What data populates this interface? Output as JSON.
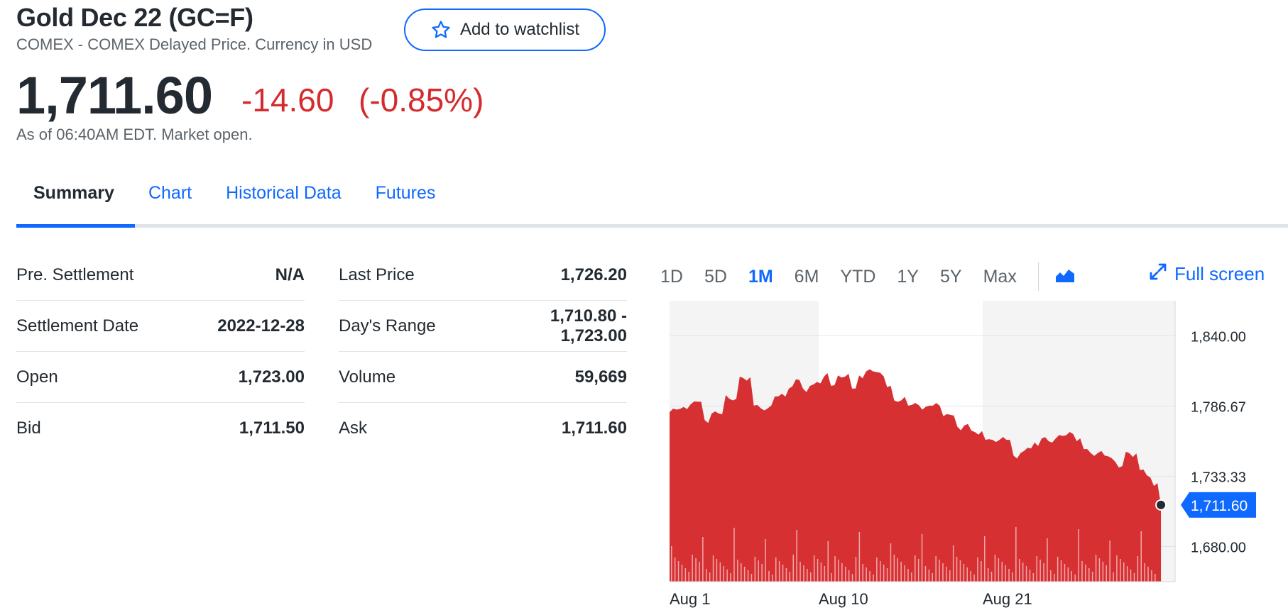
{
  "header": {
    "title": "Gold Dec 22 (GC=F)",
    "subtitle": "COMEX - COMEX Delayed Price. Currency in USD",
    "watchlist_label": "Add to watchlist"
  },
  "quote": {
    "price": "1,711.60",
    "change": "-14.60",
    "change_percent": "(-0.85%)",
    "as_of": "As of 06:40AM EDT. Market open.",
    "change_color": "#d52b2e"
  },
  "tabs": [
    {
      "label": "Summary",
      "active": true
    },
    {
      "label": "Chart"
    },
    {
      "label": "Historical Data"
    },
    {
      "label": "Futures"
    }
  ],
  "summary_left": [
    {
      "label": "Pre. Settlement",
      "value": "N/A"
    },
    {
      "label": "Settlement Date",
      "value": "2022-12-28"
    },
    {
      "label": "Open",
      "value": "1,723.00"
    },
    {
      "label": "Bid",
      "value": "1,711.50"
    }
  ],
  "summary_right": [
    {
      "label": "Last Price",
      "value": "1,726.20"
    },
    {
      "label": "Day's Range",
      "value_line1": "1,710.80 -",
      "value_line2": "1,723.00"
    },
    {
      "label": "Volume",
      "value": "59,669"
    },
    {
      "label": "Ask",
      "value": "1,711.60"
    }
  ],
  "chart_controls": {
    "ranges": [
      "1D",
      "5D",
      "1M",
      "6M",
      "YTD",
      "1Y",
      "5Y",
      "Max"
    ],
    "active_range": "1M",
    "chart_type_icon": "area-chart-icon",
    "fullscreen_label": "Full screen",
    "fullscreen_icon": "expand-arrows-icon"
  },
  "chart_data": {
    "type": "area",
    "series_color": "#d73033",
    "accent_color": "#0f69ff",
    "x_tick_labels": [
      "Aug 1",
      "Aug 10",
      "Aug 21"
    ],
    "y_tick_labels": [
      "1,840.00",
      "1,786.67",
      "1,733.33",
      "1,680.00"
    ],
    "ylim": [
      1653.33,
      1866.67
    ],
    "price_label": "1,711.60",
    "last_value": 1711.6,
    "x": [
      0,
      1,
      2,
      3,
      4,
      5,
      6,
      7,
      8,
      9,
      10,
      11,
      12,
      13,
      14,
      15,
      16,
      17,
      18,
      19,
      20,
      21,
      22,
      23,
      24,
      25,
      26,
      27,
      28,
      29,
      30,
      31,
      32,
      33,
      34,
      35,
      36,
      37,
      38,
      39,
      40,
      41,
      42,
      43,
      44,
      45,
      46,
      47,
      48,
      49,
      50,
      51,
      52,
      53,
      54,
      55,
      56,
      57,
      58,
      59,
      60,
      61,
      62,
      63,
      64,
      65,
      66,
      67,
      68,
      69,
      70
    ],
    "values": [
      1782,
      1784,
      1786,
      1788,
      1790,
      1776,
      1781,
      1781,
      1795,
      1791,
      1809,
      1806,
      1787,
      1785,
      1785,
      1794,
      1796,
      1800,
      1807,
      1800,
      1802,
      1805,
      1809,
      1802,
      1810,
      1809,
      1800,
      1810,
      1813,
      1813,
      1812,
      1801,
      1791,
      1791,
      1787,
      1789,
      1784,
      1787,
      1789,
      1779,
      1780,
      1771,
      1772,
      1768,
      1765,
      1761,
      1761,
      1761,
      1761,
      1749,
      1751,
      1755,
      1759,
      1762,
      1760,
      1762,
      1764,
      1767,
      1760,
      1754,
      1751,
      1751,
      1749,
      1747,
      1740,
      1752,
      1748,
      1738,
      1734,
      1726,
      1711.6
    ],
    "grid": true
  }
}
